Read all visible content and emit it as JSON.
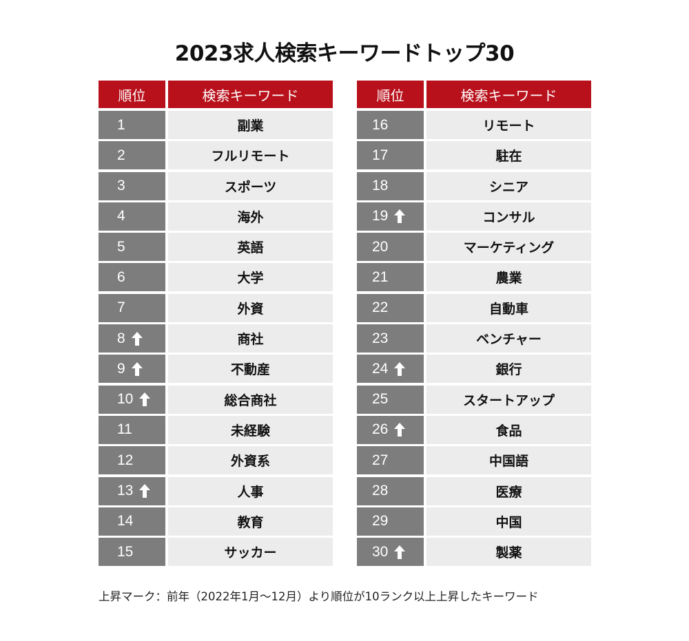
{
  "title": "2023求人検索キーワードトップ30",
  "header": {
    "rank_label": "順位",
    "keyword_label": "検索キーワード"
  },
  "colors": {
    "header_bg": "#b8111c",
    "rank_bg": "#7d7d7d",
    "keyword_bg": "#ececec",
    "arrow": "#ffffff"
  },
  "left_table": [
    {
      "rank": "1",
      "keyword": "副業",
      "rising": false
    },
    {
      "rank": "2",
      "keyword": "フルリモート",
      "rising": false
    },
    {
      "rank": "3",
      "keyword": "スポーツ",
      "rising": false
    },
    {
      "rank": "4",
      "keyword": "海外",
      "rising": false
    },
    {
      "rank": "5",
      "keyword": "英語",
      "rising": false
    },
    {
      "rank": "6",
      "keyword": "大学",
      "rising": false
    },
    {
      "rank": "7",
      "keyword": "外資",
      "rising": false
    },
    {
      "rank": "8",
      "keyword": "商社",
      "rising": true
    },
    {
      "rank": "9",
      "keyword": "不動産",
      "rising": true
    },
    {
      "rank": "10",
      "keyword": "総合商社",
      "rising": true
    },
    {
      "rank": "11",
      "keyword": "未経験",
      "rising": false
    },
    {
      "rank": "12",
      "keyword": "外資系",
      "rising": false
    },
    {
      "rank": "13",
      "keyword": "人事",
      "rising": true
    },
    {
      "rank": "14",
      "keyword": "教育",
      "rising": false
    },
    {
      "rank": "15",
      "keyword": "サッカー",
      "rising": false
    }
  ],
  "right_table": [
    {
      "rank": "16",
      "keyword": "リモート",
      "rising": false
    },
    {
      "rank": "17",
      "keyword": "駐在",
      "rising": false
    },
    {
      "rank": "18",
      "keyword": "シニア",
      "rising": false
    },
    {
      "rank": "19",
      "keyword": "コンサル",
      "rising": true
    },
    {
      "rank": "20",
      "keyword": "マーケティング",
      "rising": false
    },
    {
      "rank": "21",
      "keyword": "農業",
      "rising": false
    },
    {
      "rank": "22",
      "keyword": "自動車",
      "rising": false
    },
    {
      "rank": "23",
      "keyword": "ベンチャー",
      "rising": false
    },
    {
      "rank": "24",
      "keyword": "銀行",
      "rising": true
    },
    {
      "rank": "25",
      "keyword": "スタートアップ",
      "rising": false
    },
    {
      "rank": "26",
      "keyword": "食品",
      "rising": true
    },
    {
      "rank": "27",
      "keyword": "中国語",
      "rising": false
    },
    {
      "rank": "28",
      "keyword": "医療",
      "rising": false
    },
    {
      "rank": "29",
      "keyword": "中国",
      "rising": false
    },
    {
      "rank": "30",
      "keyword": "製薬",
      "rising": true
    }
  ],
  "icons": {
    "rising_mark": "up-arrow-icon"
  },
  "footnote": "上昇マーク：前年（2022年1月～12月）より順位が10ランク以上上昇したキーワード"
}
